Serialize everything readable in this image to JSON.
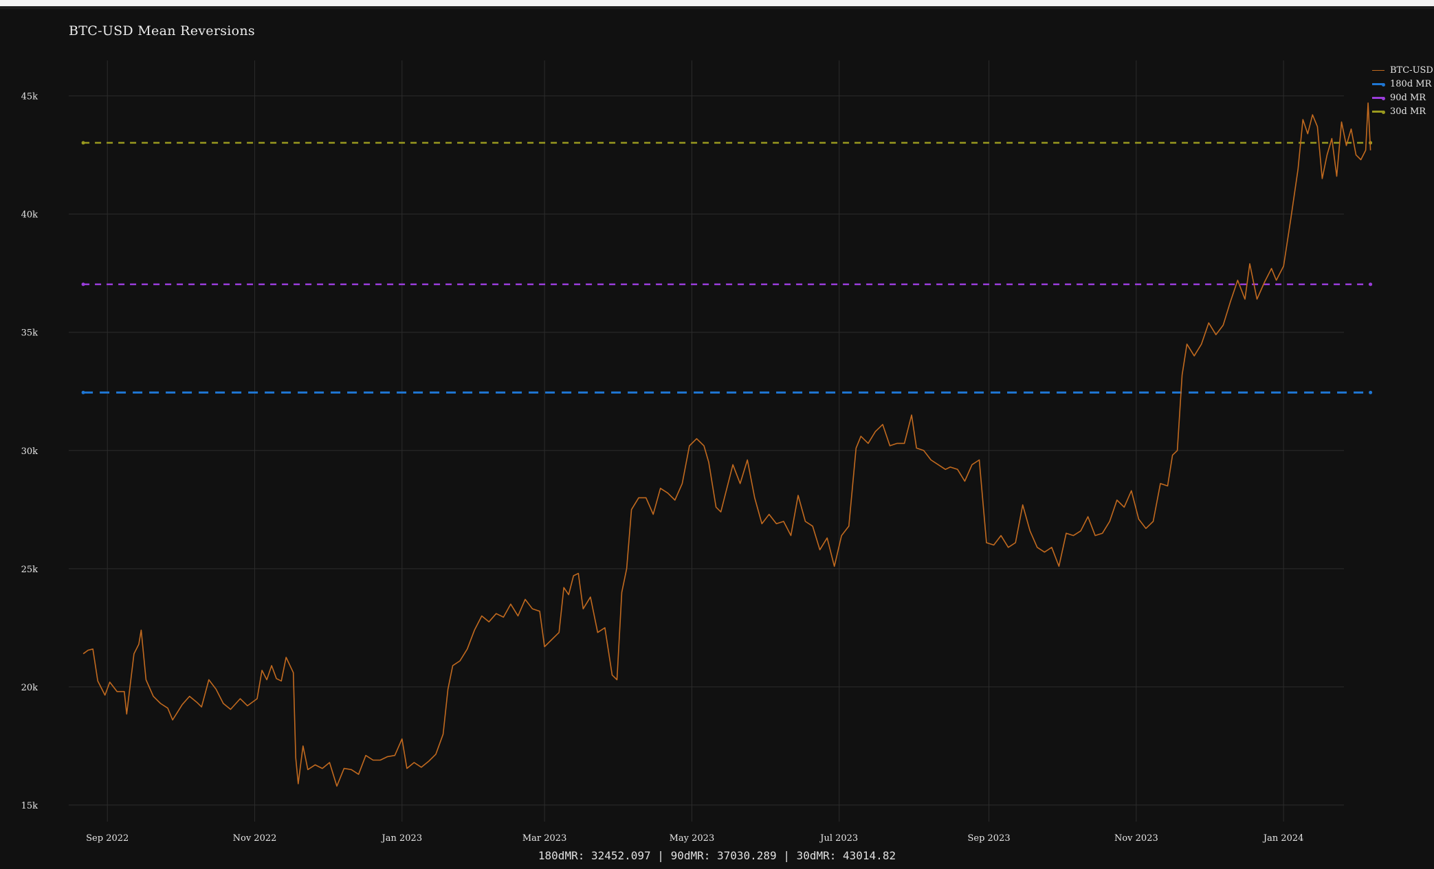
{
  "chart_data": {
    "type": "line",
    "title": "BTC-USD Mean Reversions",
    "xlabel": "",
    "ylabel": "",
    "x_range": [
      "2022-08-16",
      "2024-01-26"
    ],
    "ylim": [
      14300,
      46500
    ],
    "y_ticks": [
      15000,
      20000,
      25000,
      30000,
      35000,
      40000,
      45000
    ],
    "y_tick_labels": [
      "15k",
      "20k",
      "25k",
      "30k",
      "35k",
      "40k",
      "45k"
    ],
    "x_ticks": [
      "2022-09-01",
      "2022-11-01",
      "2023-01-01",
      "2023-03-01",
      "2023-05-01",
      "2023-07-01",
      "2023-09-01",
      "2023-11-01",
      "2024-01-01"
    ],
    "x_tick_labels": [
      "Sep 2022",
      "Nov 2022",
      "Jan 2023",
      "Mar 2023",
      "May 2023",
      "Jul 2023",
      "Sep 2023",
      "Nov 2023",
      "Jan 2024"
    ],
    "grid": true,
    "legend_position": "top-right",
    "series": [
      {
        "name": "BTC-USD",
        "color": "#c26a1f",
        "style": "solid",
        "points": [
          [
            "2022-08-22",
            21400
          ],
          [
            "2022-08-24",
            21550
          ],
          [
            "2022-08-26",
            21600
          ],
          [
            "2022-08-28",
            20250
          ],
          [
            "2022-08-31",
            19650
          ],
          [
            "2022-09-02",
            20200
          ],
          [
            "2022-09-05",
            19800
          ],
          [
            "2022-09-08",
            19800
          ],
          [
            "2022-09-09",
            18850
          ],
          [
            "2022-09-12",
            21400
          ],
          [
            "2022-09-14",
            21800
          ],
          [
            "2022-09-15",
            22400
          ],
          [
            "2022-09-17",
            20300
          ],
          [
            "2022-09-20",
            19600
          ],
          [
            "2022-09-23",
            19300
          ],
          [
            "2022-09-26",
            19100
          ],
          [
            "2022-09-28",
            18600
          ],
          [
            "2022-10-02",
            19250
          ],
          [
            "2022-10-05",
            19600
          ],
          [
            "2022-10-08",
            19350
          ],
          [
            "2022-10-10",
            19150
          ],
          [
            "2022-10-13",
            20300
          ],
          [
            "2022-10-16",
            19900
          ],
          [
            "2022-10-19",
            19300
          ],
          [
            "2022-10-22",
            19050
          ],
          [
            "2022-10-26",
            19500
          ],
          [
            "2022-10-29",
            19200
          ],
          [
            "2022-11-02",
            19500
          ],
          [
            "2022-11-04",
            20700
          ],
          [
            "2022-11-06",
            20300
          ],
          [
            "2022-11-08",
            20900
          ],
          [
            "2022-11-10",
            20350
          ],
          [
            "2022-11-12",
            20250
          ],
          [
            "2022-11-14",
            21250
          ],
          [
            "2022-11-17",
            20600
          ],
          [
            "2022-11-18",
            17000
          ],
          [
            "2022-11-19",
            15900
          ],
          [
            "2022-11-21",
            17500
          ],
          [
            "2022-11-23",
            16500
          ],
          [
            "2022-11-26",
            16700
          ],
          [
            "2022-11-29",
            16550
          ],
          [
            "2022-12-02",
            16800
          ],
          [
            "2022-12-05",
            15800
          ],
          [
            "2022-12-08",
            16550
          ],
          [
            "2022-12-11",
            16500
          ],
          [
            "2022-12-14",
            16300
          ],
          [
            "2022-12-17",
            17100
          ],
          [
            "2022-12-20",
            16900
          ],
          [
            "2022-12-23",
            16900
          ],
          [
            "2022-12-26",
            17050
          ],
          [
            "2022-12-29",
            17100
          ],
          [
            "2023-01-01",
            17800
          ],
          [
            "2023-01-03",
            16550
          ],
          [
            "2023-01-06",
            16800
          ],
          [
            "2023-01-09",
            16600
          ],
          [
            "2023-01-12",
            16850
          ],
          [
            "2023-01-15",
            17150
          ],
          [
            "2023-01-18",
            18000
          ],
          [
            "2023-01-20",
            19900
          ],
          [
            "2023-01-22",
            20900
          ],
          [
            "2023-01-25",
            21100
          ],
          [
            "2023-01-28",
            21600
          ],
          [
            "2023-01-31",
            22400
          ],
          [
            "2023-02-03",
            23000
          ],
          [
            "2023-02-06",
            22750
          ],
          [
            "2023-02-09",
            23100
          ],
          [
            "2023-02-12",
            22950
          ],
          [
            "2023-02-15",
            23500
          ],
          [
            "2023-02-18",
            23000
          ],
          [
            "2023-02-21",
            23700
          ],
          [
            "2023-02-24",
            23300
          ],
          [
            "2023-02-27",
            23200
          ],
          [
            "2023-03-01",
            21700
          ],
          [
            "2023-03-04",
            22000
          ],
          [
            "2023-03-07",
            22300
          ],
          [
            "2023-03-09",
            24200
          ],
          [
            "2023-03-11",
            23900
          ],
          [
            "2023-03-13",
            24700
          ],
          [
            "2023-03-15",
            24800
          ],
          [
            "2023-03-17",
            23300
          ],
          [
            "2023-03-20",
            23800
          ],
          [
            "2023-03-23",
            22300
          ],
          [
            "2023-03-26",
            22500
          ],
          [
            "2023-03-29",
            20500
          ],
          [
            "2023-03-31",
            20300
          ],
          [
            "2023-04-02",
            24000
          ],
          [
            "2023-04-04",
            25000
          ],
          [
            "2023-04-06",
            27500
          ],
          [
            "2023-04-09",
            28000
          ],
          [
            "2023-04-12",
            28000
          ],
          [
            "2023-04-15",
            27300
          ],
          [
            "2023-04-18",
            28400
          ],
          [
            "2023-04-21",
            28200
          ],
          [
            "2023-04-24",
            27900
          ],
          [
            "2023-04-27",
            28600
          ],
          [
            "2023-04-30",
            30200
          ],
          [
            "2023-05-03",
            30500
          ],
          [
            "2023-05-06",
            30200
          ],
          [
            "2023-05-08",
            29500
          ],
          [
            "2023-05-11",
            27600
          ],
          [
            "2023-05-13",
            27400
          ],
          [
            "2023-05-15",
            28200
          ],
          [
            "2023-05-18",
            29400
          ],
          [
            "2023-05-21",
            28600
          ],
          [
            "2023-05-24",
            29600
          ],
          [
            "2023-05-27",
            28000
          ],
          [
            "2023-05-30",
            26900
          ],
          [
            "2023-06-02",
            27300
          ],
          [
            "2023-06-05",
            26900
          ],
          [
            "2023-06-08",
            27000
          ],
          [
            "2023-06-11",
            26400
          ],
          [
            "2023-06-14",
            28100
          ],
          [
            "2023-06-17",
            27000
          ],
          [
            "2023-06-20",
            26800
          ],
          [
            "2023-06-23",
            25800
          ],
          [
            "2023-06-26",
            26300
          ],
          [
            "2023-06-29",
            25100
          ],
          [
            "2023-07-02",
            26400
          ],
          [
            "2023-07-05",
            26800
          ],
          [
            "2023-07-08",
            30100
          ],
          [
            "2023-07-10",
            30600
          ],
          [
            "2023-07-13",
            30300
          ],
          [
            "2023-07-16",
            30800
          ],
          [
            "2023-07-19",
            31100
          ],
          [
            "2023-07-22",
            30200
          ],
          [
            "2023-07-25",
            30300
          ],
          [
            "2023-07-28",
            30300
          ],
          [
            "2023-07-31",
            31500
          ],
          [
            "2023-08-02",
            30100
          ],
          [
            "2023-08-05",
            30000
          ],
          [
            "2023-08-08",
            29600
          ],
          [
            "2023-08-11",
            29400
          ],
          [
            "2023-08-14",
            29200
          ],
          [
            "2023-08-16",
            29300
          ],
          [
            "2023-08-19",
            29200
          ],
          [
            "2023-08-22",
            28700
          ],
          [
            "2023-08-25",
            29400
          ],
          [
            "2023-08-28",
            29600
          ],
          [
            "2023-08-31",
            26100
          ],
          [
            "2023-09-03",
            26000
          ],
          [
            "2023-09-06",
            26400
          ],
          [
            "2023-09-09",
            25900
          ],
          [
            "2023-09-12",
            26100
          ],
          [
            "2023-09-15",
            27700
          ],
          [
            "2023-09-18",
            26600
          ],
          [
            "2023-09-21",
            25900
          ],
          [
            "2023-09-24",
            25700
          ],
          [
            "2023-09-27",
            25900
          ],
          [
            "2023-09-30",
            25100
          ],
          [
            "2023-10-03",
            26500
          ],
          [
            "2023-10-06",
            26400
          ],
          [
            "2023-10-09",
            26600
          ],
          [
            "2023-10-12",
            27200
          ],
          [
            "2023-10-15",
            26400
          ],
          [
            "2023-10-18",
            26500
          ],
          [
            "2023-10-21",
            27000
          ],
          [
            "2023-10-24",
            27900
          ],
          [
            "2023-10-27",
            27600
          ],
          [
            "2023-10-30",
            28300
          ],
          [
            "2023-11-02",
            27100
          ],
          [
            "2023-11-05",
            26700
          ],
          [
            "2023-11-08",
            27000
          ],
          [
            "2023-11-11",
            28600
          ],
          [
            "2023-11-14",
            28500
          ],
          [
            "2023-11-16",
            29800
          ],
          [
            "2023-11-18",
            30000
          ],
          [
            "2023-11-20",
            33200
          ],
          [
            "2023-11-22",
            34500
          ],
          [
            "2023-11-25",
            34000
          ],
          [
            "2023-11-28",
            34500
          ],
          [
            "2023-12-01",
            35400
          ],
          [
            "2023-12-04",
            34900
          ],
          [
            "2023-12-07",
            35300
          ],
          [
            "2023-12-10",
            36300
          ],
          [
            "2023-12-13",
            37200
          ],
          [
            "2023-12-16",
            36400
          ],
          [
            "2023-12-18",
            37900
          ],
          [
            "2023-12-21",
            36400
          ],
          [
            "2023-12-24",
            37100
          ],
          [
            "2023-12-27",
            37700
          ],
          [
            "2023-12-29",
            37200
          ],
          [
            "2024-01-01",
            37800
          ],
          [
            "2024-01-04",
            39800
          ],
          [
            "2024-01-07",
            41900
          ],
          [
            "2024-01-09",
            44000
          ],
          [
            "2024-01-11",
            43400
          ],
          [
            "2024-01-13",
            44200
          ],
          [
            "2024-01-15",
            43700
          ],
          [
            "2024-01-17",
            41500
          ],
          [
            "2024-01-19",
            42500
          ],
          [
            "2024-01-21",
            43200
          ],
          [
            "2024-01-23",
            41600
          ],
          [
            "2024-01-25",
            43900
          ],
          [
            "2024-01-27",
            42900
          ],
          [
            "2024-01-29",
            43600
          ],
          [
            "2024-01-31",
            42500
          ],
          [
            "2024-02-02",
            42300
          ],
          [
            "2024-02-04",
            42700
          ],
          [
            "2024-02-05",
            44700
          ],
          [
            "2024-02-06",
            42700
          ]
        ]
      },
      {
        "name": "180d MR",
        "color": "#1f77d4",
        "style": "dashed",
        "value": 32452.097
      },
      {
        "name": "90d MR",
        "color": "#9a3ddb",
        "style": "dashed",
        "value": 37030.289
      },
      {
        "name": "30d MR",
        "color": "#9a9a1f",
        "style": "dashed",
        "value": 43014.82
      }
    ],
    "summary_line": "180dMR: 32452.097 | 90dMR: 37030.289 | 30dMR: 43014.82"
  }
}
